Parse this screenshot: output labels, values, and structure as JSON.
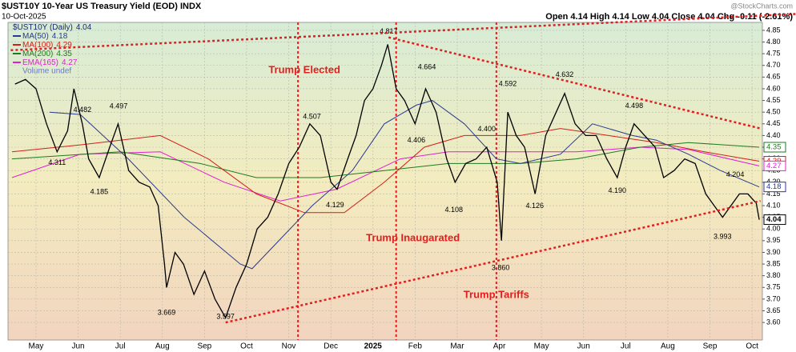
{
  "chart_data": {
    "type": "line",
    "title": "$UST10Y 10-Year US Treasury Yield (EOD) INDX",
    "date": "10-Oct-2025",
    "quote": "Open 4.14 High 4.14 Low 4.04 Close 4.04 Chg -0.11 (-2.61%)",
    "watermark": "@StockCharts.com",
    "volume_note": "Volume undef",
    "xlim": [
      -0.665,
      17.245
    ],
    "xticks": [
      {
        "value": 0,
        "label": "May"
      },
      {
        "value": 1,
        "label": "Jun"
      },
      {
        "value": 2,
        "label": "Jul"
      },
      {
        "value": 3,
        "label": "Aug"
      },
      {
        "value": 4,
        "label": "Sep"
      },
      {
        "value": 5,
        "label": "Oct"
      },
      {
        "value": 6,
        "label": "Nov"
      },
      {
        "value": 7,
        "label": "Dec"
      },
      {
        "value": 8,
        "label": "2025"
      },
      {
        "value": 9,
        "label": "Feb"
      },
      {
        "value": 10,
        "label": "Mar"
      },
      {
        "value": 11,
        "label": "Apr"
      },
      {
        "value": 12,
        "label": "May"
      },
      {
        "value": 13,
        "label": "Jun"
      },
      {
        "value": 14,
        "label": "Jul"
      },
      {
        "value": 15,
        "label": "Aug"
      },
      {
        "value": 16,
        "label": "Sep"
      },
      {
        "value": 17,
        "label": "Oct"
      }
    ],
    "ylim": [
      3.525,
      4.884
    ],
    "yticks": [
      {
        "value": 3.6,
        "label": "3.60"
      },
      3.65,
      {
        "value": 3.7,
        "label": "3.70"
      },
      3.75,
      {
        "value": 3.8,
        "label": "3.80"
      },
      3.85,
      {
        "value": 3.9,
        "label": "3.90"
      },
      3.95,
      {
        "value": 4,
        "label": "4.00"
      },
      4.05,
      {
        "value": 4.1,
        "label": "4.10"
      },
      4.15,
      {
        "value": 4.2,
        "label": "4.20"
      },
      4.25,
      {
        "value": 4.3,
        "label": "4.30"
      },
      4.35,
      {
        "value": 4.4,
        "label": "4.40"
      },
      4.45,
      {
        "value": 4.5,
        "label": "4.50"
      },
      4.55,
      {
        "value": 4.6,
        "label": "4.60"
      },
      4.65,
      {
        "value": 4.7,
        "label": "4.70"
      },
      4.75,
      {
        "value": 4.8,
        "label": "4.80"
      },
      4.85
    ],
    "grid": true,
    "series": [
      {
        "name": "$UST10Y (Daily)",
        "last": 4.04,
        "color": "#000000",
        "x": [
          -0.5,
          -0.25,
          0,
          0.25,
          0.5,
          0.75,
          0.9,
          1.1,
          1.25,
          1.5,
          1.75,
          1.95,
          2.2,
          2.45,
          2.7,
          2.9,
          3.05,
          3.1,
          3.3,
          3.5,
          3.75,
          4,
          4.25,
          4.5,
          4.75,
          5,
          5.25,
          5.5,
          5.75,
          6,
          6.25,
          6.5,
          6.75,
          7,
          7.15,
          7.4,
          7.6,
          7.8,
          8,
          8.2,
          8.35,
          8.55,
          8.75,
          9,
          9.25,
          9.5,
          9.75,
          9.95,
          10.2,
          10.45,
          10.7,
          10.95,
          11.05,
          11.2,
          11.4,
          11.6,
          11.85,
          12.1,
          12.35,
          12.55,
          12.8,
          13.05,
          13.3,
          13.55,
          13.8,
          14,
          14.2,
          14.45,
          14.7,
          14.9,
          15.15,
          15.4,
          15.65,
          15.9,
          16.1,
          16.3,
          16.5,
          16.7,
          16.9,
          17.1,
          17.17
        ],
        "values": [
          4.62,
          4.64,
          4.6,
          4.45,
          4.33,
          4.42,
          4.6,
          4.45,
          4.3,
          4.22,
          4.35,
          4.45,
          4.25,
          4.2,
          4.18,
          4.1,
          3.85,
          3.75,
          3.9,
          3.85,
          3.72,
          3.82,
          3.7,
          3.62,
          3.75,
          3.85,
          4,
          4.05,
          4.15,
          4.28,
          4.35,
          4.45,
          4.4,
          4.2,
          4.17,
          4.3,
          4.4,
          4.55,
          4.6,
          4.7,
          4.79,
          4.6,
          4.55,
          4.45,
          4.6,
          4.5,
          4.3,
          4.2,
          4.28,
          4.3,
          4.35,
          4.2,
          3.95,
          4.5,
          4.4,
          4.35,
          4.15,
          4.4,
          4.5,
          4.58,
          4.45,
          4.4,
          4.4,
          4.3,
          4.22,
          4.35,
          4.45,
          4.4,
          4.35,
          4.22,
          4.25,
          4.3,
          4.28,
          4.15,
          4.1,
          4.05,
          4.1,
          4.15,
          4.15,
          4.11,
          4.04
        ]
      },
      {
        "name": "MA(50)",
        "last": 4.18,
        "color": "#2b3a8f",
        "x": [
          0.32,
          1.05,
          2.19,
          3.52,
          4.85,
          5.13,
          6.56,
          7.51,
          8.27,
          9.03,
          9.41,
          10.17,
          10.93,
          11.5,
          12.45,
          13.21,
          14.16,
          14.73,
          15.49,
          16.25,
          17.17
        ],
        "values": [
          4.5,
          4.49,
          4.3,
          4.05,
          3.85,
          3.83,
          4.1,
          4.25,
          4.45,
          4.53,
          4.55,
          4.45,
          4.3,
          4.28,
          4.32,
          4.45,
          4.4,
          4.38,
          4.32,
          4.25,
          4.18
        ]
      },
      {
        "name": "MA(100)",
        "last": 4.29,
        "color": "#d0201a",
        "x": [
          -0.57,
          1.05,
          2.95,
          4.09,
          5.23,
          6.37,
          7.32,
          8.27,
          9.22,
          10.17,
          11.5,
          12.45,
          13.59,
          14.73,
          15.87,
          17.17
        ],
        "values": [
          4.33,
          4.36,
          4.4,
          4.3,
          4.15,
          4.07,
          4.07,
          4.2,
          4.35,
          4.4,
          4.4,
          4.43,
          4.4,
          4.37,
          4.33,
          4.29
        ]
      },
      {
        "name": "MA(200)",
        "last": 4.35,
        "color": "#1f7a1f",
        "x": [
          -0.57,
          2,
          3.9,
          5.23,
          6.75,
          8.27,
          9.79,
          11.5,
          12.83,
          14.35,
          15.49,
          17.17
        ],
        "values": [
          4.3,
          4.33,
          4.28,
          4.22,
          4.22,
          4.25,
          4.28,
          4.28,
          4.3,
          4.35,
          4.37,
          4.35
        ]
      },
      {
        "name": "EMA(165)",
        "last": 4.27,
        "color": "#e020d0",
        "x": [
          -0.57,
          1.05,
          2.95,
          4.47,
          5.8,
          7.13,
          8.65,
          9.79,
          11.5,
          12.83,
          14.35,
          15.49,
          17.17
        ],
        "values": [
          4.22,
          4.32,
          4.33,
          4.2,
          4.12,
          4.17,
          4.3,
          4.33,
          4.33,
          4.33,
          4.35,
          4.34,
          4.27
        ]
      }
    ],
    "trendlines": [
      {
        "x": [
          -0.6,
          18.05
        ],
        "values": [
          4.765,
          4.92
        ]
      },
      {
        "x": [
          8.37,
          17.2
        ],
        "values": [
          4.82,
          4.43
        ]
      },
      {
        "x": [
          4.5,
          17.2
        ],
        "values": [
          3.6,
          4.12
        ]
      }
    ],
    "events": [
      {
        "x": 6.22,
        "label": "Trump Elected"
      },
      {
        "x": 8.55,
        "label": "Trump Inaugarated"
      },
      {
        "x": 10.93,
        "label": "Trump Tariffs"
      }
    ],
    "point_labels": {
      "x": [
        0.5,
        1.1,
        1.5,
        1.96,
        3.1,
        4.5,
        6.55,
        7.1,
        8.37,
        9.03,
        9.28,
        9.92,
        10.7,
        11.03,
        11.2,
        11.84,
        12.55,
        13.8,
        14.2,
        16.3,
        16.6
      ],
      "values": [
        4.311,
        4.482,
        4.185,
        4.497,
        3.669,
        3.597,
        4.507,
        4.129,
        4.817,
        4.406,
        4.664,
        4.108,
        4.4,
        3.86,
        4.592,
        4.126,
        4.632,
        4.19,
        4.498,
        3.993,
        4.204
      ],
      "value_labels": [
        "4.311",
        "4.482",
        "4.185",
        "4.497",
        "3.669",
        "3.597",
        "4.507",
        "4.129",
        "4.817",
        "4.406",
        "4.664",
        "4.108",
        "4.400",
        "3.860",
        "4.592",
        "4.126",
        "4.632",
        "4.190",
        "4.498",
        "3.993",
        "4.204"
      ]
    }
  }
}
